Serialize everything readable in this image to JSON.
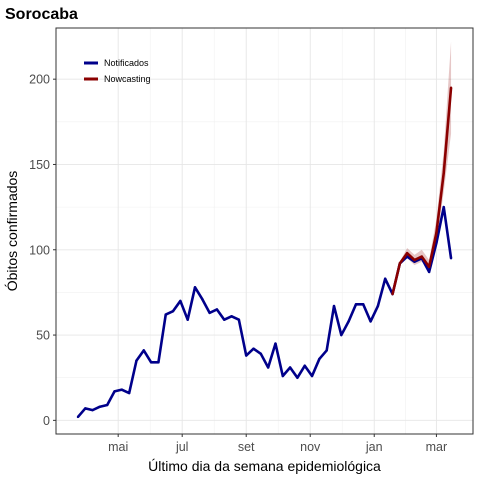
{
  "chart_data": {
    "type": "line",
    "title": "Sorocaba",
    "xlabel": "Último dia da semana epidemiológica",
    "ylabel": "Óbitos confirmados",
    "x_ticks": [
      {
        "label": "mai",
        "week": 5.5
      },
      {
        "label": "jul",
        "week": 14.25
      },
      {
        "label": "set",
        "week": 23.0
      },
      {
        "label": "nov",
        "week": 31.75
      },
      {
        "label": "jan",
        "week": 40.5
      },
      {
        "label": "mar",
        "week": 49.0
      }
    ],
    "ylim": [
      -8,
      230
    ],
    "y_ticks": [
      0,
      50,
      100,
      150,
      200
    ],
    "xlim": [
      -3,
      54
    ],
    "grid": true,
    "legend_position": "top-left",
    "series": [
      {
        "name": "Notificados",
        "color": "#00008B",
        "x": [
          0,
          1,
          2,
          3,
          4,
          5,
          6,
          7,
          8,
          9,
          10,
          11,
          12,
          13,
          14,
          15,
          16,
          17,
          18,
          19,
          20,
          21,
          22,
          23,
          24,
          25,
          26,
          27,
          28,
          29,
          30,
          31,
          32,
          33,
          34,
          35,
          36,
          37,
          38,
          39,
          40,
          41,
          42,
          43,
          44,
          45,
          46,
          47,
          48,
          49,
          50,
          51
        ],
        "values": [
          2,
          7,
          6,
          8,
          9,
          17,
          18,
          16,
          35,
          41,
          34,
          34,
          62,
          64,
          70,
          59,
          78,
          71,
          63,
          65,
          59,
          61,
          59,
          38,
          42,
          39,
          31,
          45,
          26,
          31,
          25,
          32,
          26,
          36,
          41,
          67,
          50,
          58,
          68,
          68,
          58,
          67,
          83,
          74,
          92,
          96,
          93,
          95,
          87,
          104,
          125,
          95
        ]
      },
      {
        "name": "Nowcasting",
        "color": "#8B0000",
        "x": [
          43,
          44,
          45,
          46,
          47,
          48,
          49,
          50,
          51
        ],
        "values": [
          74,
          92,
          98,
          94,
          96,
          90,
          110,
          145,
          195
        ],
        "lower": [
          74,
          91,
          95,
          91,
          93,
          88,
          104,
          134,
          168
        ],
        "upper": [
          74,
          93,
          101,
          97,
          100,
          94,
          118,
          158,
          222
        ]
      }
    ]
  }
}
